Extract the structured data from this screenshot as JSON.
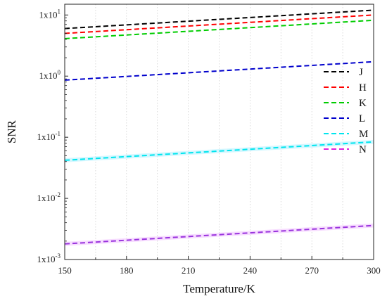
{
  "chart_data": {
    "type": "line",
    "title": "",
    "xlabel": "Temperature/K",
    "ylabel": "SNR",
    "x_scale": "linear",
    "y_scale": "log",
    "xlim": [
      150,
      300
    ],
    "ylim": [
      0.001,
      15
    ],
    "x_ticks": [
      150,
      180,
      210,
      240,
      270,
      300
    ],
    "x_tick_labels": [
      "150",
      "180",
      "210",
      "240",
      "270",
      "300"
    ],
    "y_ticks": [
      0.001,
      0.01,
      0.1,
      1,
      10
    ],
    "y_tick_labels": [
      {
        "base": "1x10",
        "exp": "-3"
      },
      {
        "base": "1x10",
        "exp": "-2"
      },
      {
        "base": "1x10",
        "exp": "-1"
      },
      {
        "base": "1x10",
        "exp": "0"
      },
      {
        "base": "1x10",
        "exp": "1"
      }
    ],
    "grid": "vertical dotted",
    "legend_position": "right",
    "series": [
      {
        "name": "J",
        "color": "#000000",
        "x": [
          150,
          300
        ],
        "y": [
          6.0,
          12.0
        ]
      },
      {
        "name": "H",
        "color": "#ff0000",
        "x": [
          150,
          300
        ],
        "y": [
          5.0,
          10.0
        ]
      },
      {
        "name": "K",
        "color": "#00cc00",
        "x": [
          150,
          300
        ],
        "y": [
          4.1,
          8.2
        ]
      },
      {
        "name": "L",
        "color": "#0000cc",
        "x": [
          150,
          300
        ],
        "y": [
          0.86,
          1.72
        ]
      },
      {
        "name": "M",
        "color": "#00e5ee",
        "x": [
          150,
          300
        ],
        "y": [
          0.042,
          0.084
        ],
        "band_color": "#c4f4ff"
      },
      {
        "name": "N",
        "color": "#dd22dd",
        "line_color": "#9933dd",
        "x": [
          150,
          300
        ],
        "y": [
          0.0018,
          0.0036
        ],
        "band_color": "#f4d0ff"
      }
    ]
  }
}
